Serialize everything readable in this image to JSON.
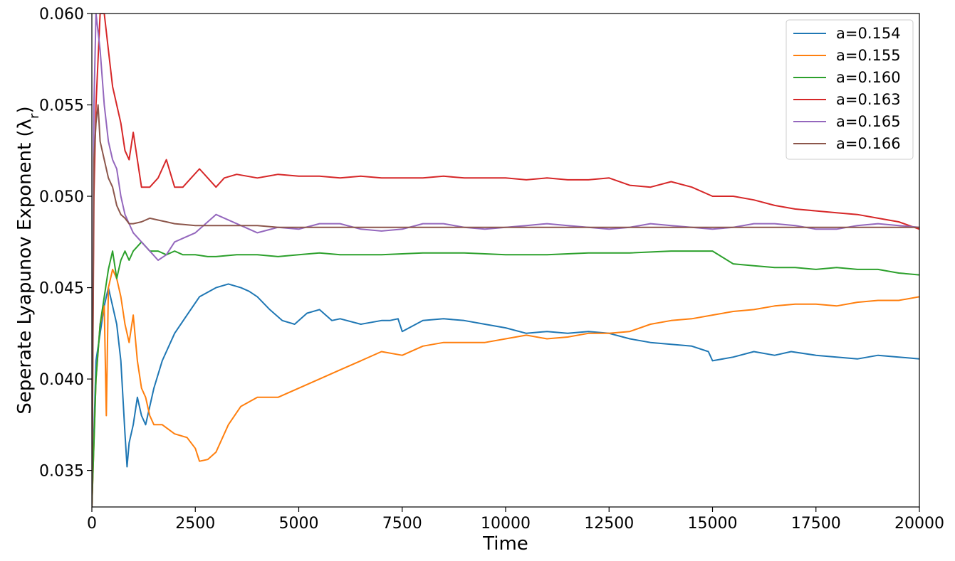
{
  "chart_data": {
    "type": "line",
    "title": "",
    "xlabel": "Time",
    "ylabel": "Seperate Lyapunov Exponent (λ",
    "ylabel_subscript": "r",
    "ylabel_suffix": ")",
    "xlim": [
      0,
      20000
    ],
    "ylim": [
      0.033,
      0.06
    ],
    "xticks": [
      0,
      2500,
      5000,
      7500,
      10000,
      12500,
      15000,
      17500,
      20000
    ],
    "xtick_labels": [
      "0",
      "2500",
      "5000",
      "7500",
      "10000",
      "12500",
      "15000",
      "17500",
      "20000"
    ],
    "yticks": [
      0.035,
      0.04,
      0.045,
      0.05,
      0.055,
      0.06
    ],
    "ytick_labels": [
      "0.035",
      "0.040",
      "0.045",
      "0.050",
      "0.055",
      "0.060"
    ],
    "grid": false,
    "legend_position": "top-right",
    "series": [
      {
        "name": "a=0.154",
        "color": "#1f77b4",
        "x": [
          0,
          100,
          200,
          300,
          400,
          500,
          600,
          700,
          800,
          850,
          900,
          1000,
          1100,
          1200,
          1300,
          1400,
          1500,
          1700,
          2000,
          2300,
          2600,
          3000,
          3300,
          3600,
          3800,
          4000,
          4300,
          4600,
          4900,
          5200,
          5500,
          5800,
          6000,
          6500,
          7000,
          7200,
          7400,
          7500,
          8000,
          8500,
          9000,
          9500,
          10000,
          10500,
          11000,
          11500,
          12000,
          12500,
          13000,
          13500,
          14000,
          14500,
          14900,
          15000,
          15500,
          16000,
          16500,
          16900,
          17500,
          18000,
          18500,
          19000,
          19500,
          20000
        ],
        "y": [
          0.033,
          0.041,
          0.0425,
          0.044,
          0.045,
          0.044,
          0.043,
          0.041,
          0.037,
          0.0352,
          0.0365,
          0.0375,
          0.039,
          0.038,
          0.0375,
          0.0385,
          0.0395,
          0.041,
          0.0425,
          0.0435,
          0.0445,
          0.045,
          0.0452,
          0.045,
          0.0448,
          0.0445,
          0.0438,
          0.0432,
          0.043,
          0.0436,
          0.0438,
          0.0432,
          0.0433,
          0.043,
          0.0432,
          0.0432,
          0.0433,
          0.0426,
          0.0432,
          0.0433,
          0.0432,
          0.043,
          0.0428,
          0.0425,
          0.0426,
          0.0425,
          0.0426,
          0.0425,
          0.0422,
          0.042,
          0.0419,
          0.0418,
          0.0415,
          0.041,
          0.0412,
          0.0415,
          0.0413,
          0.0415,
          0.0413,
          0.0412,
          0.0411,
          0.0413,
          0.0412,
          0.0411
        ]
      },
      {
        "name": "a=0.155",
        "color": "#ff7f0e",
        "x": [
          0,
          100,
          200,
          300,
          350,
          400,
          500,
          600,
          700,
          800,
          900,
          1000,
          1100,
          1200,
          1300,
          1400,
          1500,
          1700,
          2000,
          2300,
          2500,
          2600,
          2800,
          3000,
          3300,
          3600,
          4000,
          4500,
          5000,
          5500,
          6000,
          6500,
          7000,
          7500,
          8000,
          8500,
          9000,
          9500,
          10000,
          10500,
          11000,
          11500,
          12000,
          12500,
          13000,
          13500,
          14000,
          14500,
          15000,
          15500,
          16000,
          16500,
          17000,
          17500,
          18000,
          18500,
          19000,
          19500,
          20000
        ],
        "y": [
          0.033,
          0.04,
          0.043,
          0.044,
          0.038,
          0.045,
          0.046,
          0.0455,
          0.0445,
          0.043,
          0.042,
          0.0435,
          0.041,
          0.0395,
          0.039,
          0.038,
          0.0375,
          0.0375,
          0.037,
          0.0368,
          0.0362,
          0.0355,
          0.0356,
          0.036,
          0.0375,
          0.0385,
          0.039,
          0.039,
          0.0395,
          0.04,
          0.0405,
          0.041,
          0.0415,
          0.0413,
          0.0418,
          0.042,
          0.042,
          0.042,
          0.0422,
          0.0424,
          0.0422,
          0.0423,
          0.0425,
          0.0425,
          0.0426,
          0.043,
          0.0432,
          0.0433,
          0.0435,
          0.0437,
          0.0438,
          0.044,
          0.0441,
          0.0441,
          0.044,
          0.0442,
          0.0443,
          0.0443,
          0.0445
        ]
      },
      {
        "name": "a=0.160",
        "color": "#2ca02c",
        "x": [
          0,
          100,
          200,
          300,
          400,
          500,
          600,
          700,
          800,
          900,
          1000,
          1200,
          1400,
          1600,
          1800,
          2000,
          2200,
          2500,
          2800,
          3000,
          3500,
          4000,
          4500,
          5000,
          5500,
          6000,
          7000,
          8000,
          9000,
          10000,
          11000,
          12000,
          12500,
          13000,
          14000,
          14500,
          15000,
          15500,
          16000,
          16500,
          17000,
          17500,
          18000,
          18500,
          19000,
          19500,
          20000
        ],
        "y": [
          0.033,
          0.04,
          0.043,
          0.0445,
          0.046,
          0.047,
          0.0455,
          0.0465,
          0.047,
          0.0465,
          0.047,
          0.0475,
          0.047,
          0.047,
          0.0468,
          0.047,
          0.0468,
          0.0468,
          0.0467,
          0.0467,
          0.0468,
          0.0468,
          0.0467,
          0.0468,
          0.0469,
          0.0468,
          0.0468,
          0.0469,
          0.0469,
          0.0468,
          0.0468,
          0.0469,
          0.0469,
          0.0469,
          0.047,
          0.047,
          0.047,
          0.0463,
          0.0462,
          0.0461,
          0.0461,
          0.046,
          0.0461,
          0.046,
          0.046,
          0.0458,
          0.0457
        ]
      },
      {
        "name": "a=0.163",
        "color": "#d62728",
        "x": [
          0,
          50,
          100,
          200,
          300,
          400,
          500,
          600,
          700,
          800,
          900,
          1000,
          1200,
          1400,
          1600,
          1800,
          2000,
          2200,
          2400,
          2600,
          2800,
          3000,
          3200,
          3500,
          4000,
          4500,
          5000,
          5500,
          6000,
          6500,
          7000,
          7500,
          8000,
          8500,
          9000,
          9500,
          10000,
          10500,
          11000,
          11500,
          12000,
          12500,
          13000,
          13500,
          14000,
          14500,
          15000,
          15500,
          16000,
          16500,
          17000,
          17500,
          18000,
          18500,
          19000,
          19500,
          20000
        ],
        "y": [
          0.033,
          0.05,
          0.055,
          0.06,
          0.06,
          0.058,
          0.056,
          0.055,
          0.054,
          0.0525,
          0.052,
          0.0535,
          0.0505,
          0.0505,
          0.051,
          0.052,
          0.0505,
          0.0505,
          0.051,
          0.0515,
          0.051,
          0.0505,
          0.051,
          0.0512,
          0.051,
          0.0512,
          0.0511,
          0.0511,
          0.051,
          0.0511,
          0.051,
          0.051,
          0.051,
          0.0511,
          0.051,
          0.051,
          0.051,
          0.0509,
          0.051,
          0.0509,
          0.0509,
          0.051,
          0.0506,
          0.0505,
          0.0508,
          0.0505,
          0.05,
          0.05,
          0.0498,
          0.0495,
          0.0493,
          0.0492,
          0.0491,
          0.049,
          0.0488,
          0.0486,
          0.0482
        ]
      },
      {
        "name": "a=0.165",
        "color": "#9467bd",
        "x": [
          0,
          50,
          100,
          200,
          300,
          400,
          500,
          600,
          700,
          800,
          900,
          1000,
          1200,
          1400,
          1600,
          1800,
          2000,
          2500,
          3000,
          3500,
          4000,
          4500,
          5000,
          5500,
          6000,
          6500,
          7000,
          7500,
          8000,
          8500,
          9000,
          9500,
          10000,
          10500,
          11000,
          11500,
          12000,
          12500,
          13000,
          13500,
          14000,
          14500,
          15000,
          15500,
          16000,
          16500,
          17000,
          17500,
          18000,
          18500,
          19000,
          19500,
          20000
        ],
        "y": [
          0.033,
          0.055,
          0.06,
          0.058,
          0.055,
          0.053,
          0.052,
          0.0515,
          0.05,
          0.049,
          0.0485,
          0.048,
          0.0475,
          0.047,
          0.0465,
          0.0468,
          0.0475,
          0.048,
          0.049,
          0.0485,
          0.048,
          0.0483,
          0.0482,
          0.0485,
          0.0485,
          0.0482,
          0.0481,
          0.0482,
          0.0485,
          0.0485,
          0.0483,
          0.0482,
          0.0483,
          0.0484,
          0.0485,
          0.0484,
          0.0483,
          0.0482,
          0.0483,
          0.0485,
          0.0484,
          0.0483,
          0.0482,
          0.0483,
          0.0485,
          0.0485,
          0.0484,
          0.0482,
          0.0482,
          0.0484,
          0.0485,
          0.0484,
          0.0483
        ]
      },
      {
        "name": "a=0.166",
        "color": "#8c564b",
        "x": [
          0,
          50,
          100,
          150,
          200,
          300,
          400,
          500,
          600,
          700,
          800,
          900,
          1000,
          1200,
          1400,
          1600,
          1800,
          2000,
          2500,
          3000,
          3500,
          4000,
          4500,
          5000,
          5500,
          6000,
          7000,
          8000,
          9000,
          10000,
          11000,
          12000,
          13000,
          14000,
          15000,
          16000,
          17000,
          18000,
          19000,
          20000
        ],
        "y": [
          0.033,
          0.052,
          0.054,
          0.055,
          0.053,
          0.052,
          0.051,
          0.0505,
          0.0495,
          0.049,
          0.0488,
          0.0485,
          0.0485,
          0.0486,
          0.0488,
          0.0487,
          0.0486,
          0.0485,
          0.0484,
          0.0484,
          0.0484,
          0.0484,
          0.0483,
          0.0483,
          0.0483,
          0.0483,
          0.0483,
          0.0483,
          0.0483,
          0.0483,
          0.0483,
          0.0483,
          0.0483,
          0.0483,
          0.0483,
          0.0483,
          0.0483,
          0.0483,
          0.0483,
          0.0483
        ]
      }
    ]
  }
}
